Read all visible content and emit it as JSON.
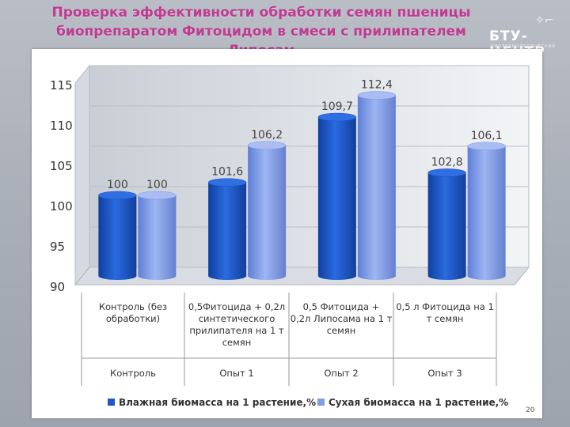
{
  "title_line1": "Проверка эффективности обработки семян пшеницы",
  "title_line2": "биопрепаратом Фитоцидом в смеси с прилипателем Липосам",
  "logo": {
    "name": "БТУ-ЦЕНТР",
    "subtitle": "БИОТЕХНОЛОГИЧЕСКИЙ ЦЕНТР"
  },
  "page_number": "20",
  "colors": {
    "title": "#c03a92",
    "series1": "#1f57c9",
    "series2": "#7f9ce8"
  },
  "chart_data": {
    "type": "bar",
    "style": "3d-cylinder",
    "categories": [
      "Контроль (без обработки)",
      "0,5Фитоцида + 0,2л синтетического прилипателя на 1 т семян",
      "0,5 Фитоцида + 0,2л Липосама на 1 т семян",
      "0,5 л Фитоцида на 1 т семян"
    ],
    "category_lines": [
      [
        "Контроль (без",
        "обработки)"
      ],
      [
        "0,5Фитоцида + 0,2л",
        "синтетического",
        "прилипателя на 1 т",
        "семян"
      ],
      [
        "0,5 Фитоцида +",
        "0,2л Липосама на 1 т",
        "семян"
      ],
      [
        "0,5 л Фитоцида на 1",
        "т семян"
      ]
    ],
    "groups": [
      "Контроль",
      "Опыт 1",
      "Опыт 2",
      "Опыт 3"
    ],
    "series": [
      {
        "name": "Влажная биомасса на 1 растение,%",
        "values": [
          100,
          101.6,
          109.7,
          102.8
        ],
        "labels": [
          "100",
          "101,6",
          "109,7",
          "102,8"
        ]
      },
      {
        "name": "Сухая биомасса на 1 растение,%",
        "values": [
          100,
          106.2,
          112.4,
          106.1
        ],
        "labels": [
          "100",
          "106,2",
          "112,4",
          "106,1"
        ]
      }
    ],
    "ylim": [
      90,
      115
    ],
    "yticks": [
      90,
      95,
      100,
      105,
      110,
      115
    ],
    "grid": true,
    "legend": "bottom"
  }
}
